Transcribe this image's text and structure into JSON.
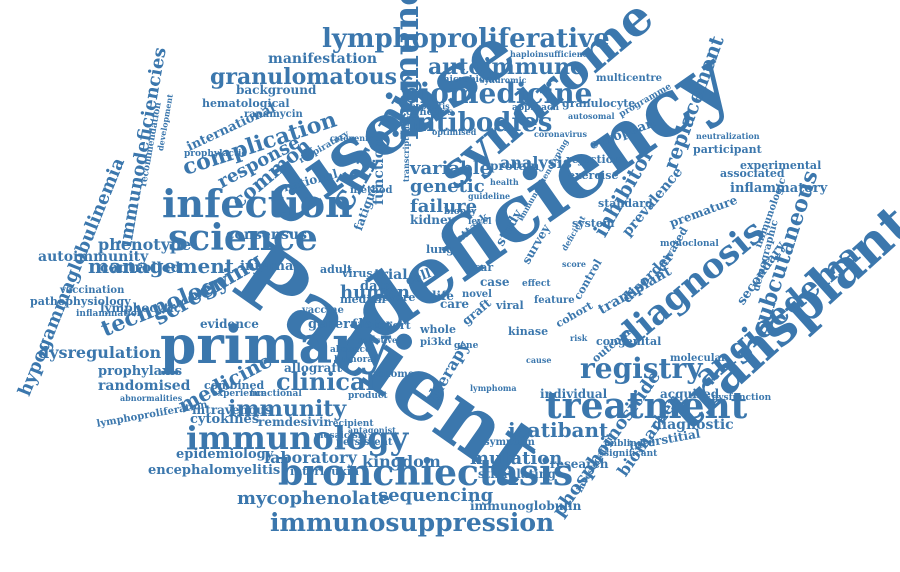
{
  "color": "#3b77ad",
  "words": [
    "Patient",
    "deficiency",
    "disease",
    "syndrome",
    "primary",
    "transplantation",
    "bronchiectasis",
    "immunosuppression",
    "infection",
    "science",
    "treatment",
    "immunology",
    "diagnosis",
    "chronic",
    "immune",
    "angioedema",
    "registry",
    "lymphoproliferative",
    "biomedicine",
    "antibodies",
    "autoimmune",
    "granulomatous",
    "complication",
    "screening",
    "technology",
    "management",
    "clinical",
    "immunity",
    "medicine",
    "icatibant",
    "mutation",
    "sequencing",
    "mycophenolate",
    "laboratory",
    "kingdom",
    "subcutaneous",
    "replacement",
    "phosphoinositide",
    "biomarker",
    "inhibitor",
    "hypogammaglobulinemia",
    "immunodeficiencies",
    "common",
    "response",
    "variable",
    "genetic",
    "failure",
    "human",
    "analysis",
    "dysregulation",
    "phenotype",
    "consensus",
    "autoimmunity",
    "controlled",
    "randomised",
    "prophylaxis",
    "diagnostic",
    "transplant",
    "disorder",
    "prevalence",
    "secondary",
    "inflammatory",
    "experimental",
    "associated",
    "participant",
    "premature",
    "european",
    "international",
    "manifestation",
    "function",
    "national",
    "fatigue",
    "epidemiology",
    "encephalomyelitis",
    "cytokines",
    "remdesivir",
    "immunoglobulin",
    "interleukin",
    "research",
    "stimulating",
    "interstitial",
    "acquired",
    "individual",
    "molecular",
    "congenital",
    "therapy",
    "internal",
    "lymphocytic",
    "intravenous",
    "evidence",
    "allograft",
    "general",
    "factor",
    "report",
    "combined",
    "rejection",
    "standard",
    "protein",
    "kidney",
    "data",
    "trial",
    "cell",
    "life",
    "care",
    "case",
    "study",
    "survey",
    "virus",
    "adult",
    "median",
    "severe",
    "vaccine",
    "exercise",
    "system",
    "symptom",
    "persistent",
    "graft",
    "kinase",
    "cohort",
    "outcome",
    "control",
    "activated",
    "immunologic",
    "demographic",
    "monoclonal",
    "viral",
    "feature",
    "whole",
    "attack",
    "genome",
    "genetics",
    "lung",
    "background",
    "hematological",
    "rapamycin",
    "prophylactic",
    "microbiome",
    "hepatitis",
    "optimised",
    "approach",
    "granulocyte",
    "multicentre",
    "haploinsufficiency",
    "syndromic",
    "vaccination",
    "pathophysiology",
    "inflammation",
    "lymphoproliferation",
    "experience",
    "functional",
    "product",
    "abnormalities",
    "recommendation",
    "development",
    "neutralization",
    "dysfunction",
    "programme",
    "autosomal",
    "coronavirus",
    "cytopenia",
    "pi3kd",
    "method",
    "novel",
    "unblinded",
    "significant",
    "investigation",
    "respiratory",
    "recipient",
    "mosaicism",
    "transcriptome",
    "absence",
    "humoral",
    "lymphoma",
    "antagonist",
    "selective",
    "immunophenotyping",
    "sar",
    "level",
    "biopsy",
    "deficient",
    "effect",
    "guideline",
    "risk",
    "gene",
    "cause",
    "score",
    "health"
  ]
}
